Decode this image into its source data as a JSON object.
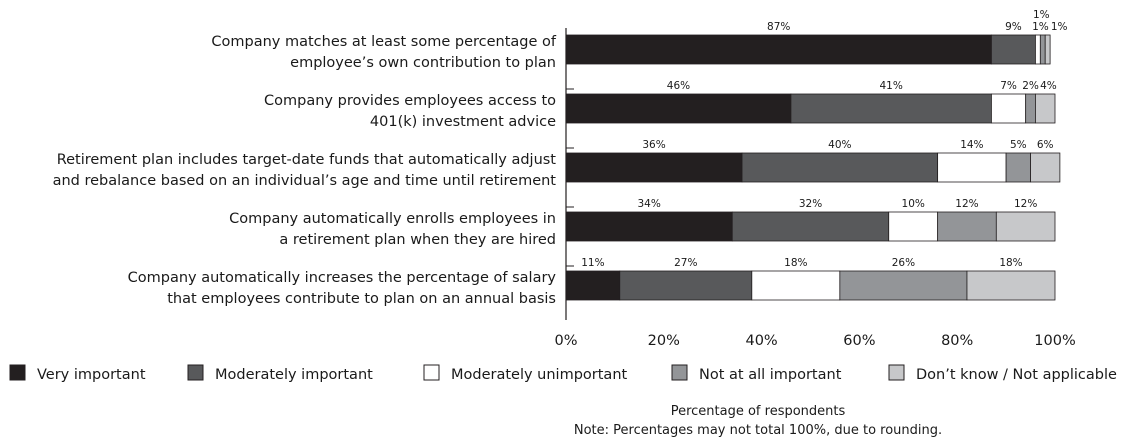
{
  "chart_data": {
    "type": "bar",
    "orientation": "horizontal",
    "stacked": true,
    "categories": [
      [
        "Company matches at least some percentage of",
        "employee’s own contribution to plan"
      ],
      [
        "Company provides employees access to",
        "401(k) investment advice"
      ],
      [
        "Retirement plan includes target-date funds that automatically adjust",
        "and rebalance based on an individual’s age and time until retirement"
      ],
      [
        "Company automatically enrolls employees in",
        "a retirement plan when they are hired"
      ],
      [
        "Company automatically increases the percentage of salary",
        "that employees contribute to plan on an annual basis"
      ]
    ],
    "series": [
      {
        "name": "Very important",
        "color": "#231f20",
        "values": [
          87,
          46,
          36,
          34,
          11
        ]
      },
      {
        "name": "Moderately important",
        "color": "#58595b",
        "values": [
          9,
          41,
          40,
          32,
          27
        ]
      },
      {
        "name": "Moderately unimportant",
        "color": "#ffffff",
        "values": [
          1,
          7,
          14,
          10,
          18
        ]
      },
      {
        "name": "Not at all important",
        "color": "#939598",
        "values": [
          1,
          2,
          5,
          12,
          26
        ]
      },
      {
        "name": "Don’t know / Not applicable",
        "color": "#c7c8ca",
        "values": [
          1,
          4,
          6,
          12,
          18
        ]
      }
    ],
    "xlim": [
      0,
      100
    ],
    "xticks": [
      "0%",
      "20%",
      "40%",
      "60%",
      "80%",
      "100%"
    ],
    "xlabel": "Percentage of respondents",
    "note": "Note: Percentages may not total 100%, due to rounding.",
    "legend_position": "bottom"
  }
}
